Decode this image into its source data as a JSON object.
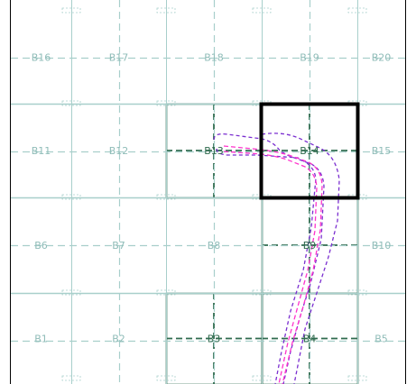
{
  "map": {
    "colors": {
      "grid_light": "#a8cfcb",
      "grid_dark": "#2f6b4e",
      "outline_purple": "#7b2fd0",
      "center_magenta": "#ff33cc",
      "selection": "#000000",
      "label_light": "#8fbcb8",
      "label_dark": "#2f6b4e"
    },
    "cells": [
      {
        "id": "B16",
        "label": "B16",
        "row": 0,
        "col": 0
      },
      {
        "id": "B17",
        "label": "B17",
        "row": 0,
        "col": 1
      },
      {
        "id": "B18",
        "label": "B18",
        "row": 0,
        "col": 2
      },
      {
        "id": "B19",
        "label": "B19",
        "row": 0,
        "col": 3
      },
      {
        "id": "B20",
        "label": "B20",
        "row": 0,
        "col": 4
      },
      {
        "id": "B11",
        "label": "B11",
        "row": 1,
        "col": 0
      },
      {
        "id": "B12",
        "label": "B12",
        "row": 1,
        "col": 1
      },
      {
        "id": "B13",
        "label": "B13",
        "row": 1,
        "col": 2,
        "active": true
      },
      {
        "id": "B14",
        "label": "B14",
        "row": 1,
        "col": 3,
        "active": true
      },
      {
        "id": "B15",
        "label": "B15",
        "row": 1,
        "col": 4
      },
      {
        "id": "B6",
        "label": "B6",
        "row": 2,
        "col": 0
      },
      {
        "id": "B7",
        "label": "B7",
        "row": 2,
        "col": 1
      },
      {
        "id": "B8",
        "label": "B8",
        "row": 2,
        "col": 2
      },
      {
        "id": "B9",
        "label": "B9",
        "row": 2,
        "col": 3,
        "active": true
      },
      {
        "id": "B10",
        "label": "B10",
        "row": 2,
        "col": 4
      },
      {
        "id": "B1",
        "label": "B1",
        "row": 3,
        "col": 0
      },
      {
        "id": "B2",
        "label": "B2",
        "row": 3,
        "col": 1
      },
      {
        "id": "B3",
        "label": "B3",
        "row": 3,
        "col": 2,
        "active": true
      },
      {
        "id": "B4",
        "label": "B4",
        "row": 3,
        "col": 3,
        "active": true
      },
      {
        "id": "B5",
        "label": "B5",
        "row": 3,
        "col": 4
      }
    ],
    "selected_cell": "B14"
  }
}
